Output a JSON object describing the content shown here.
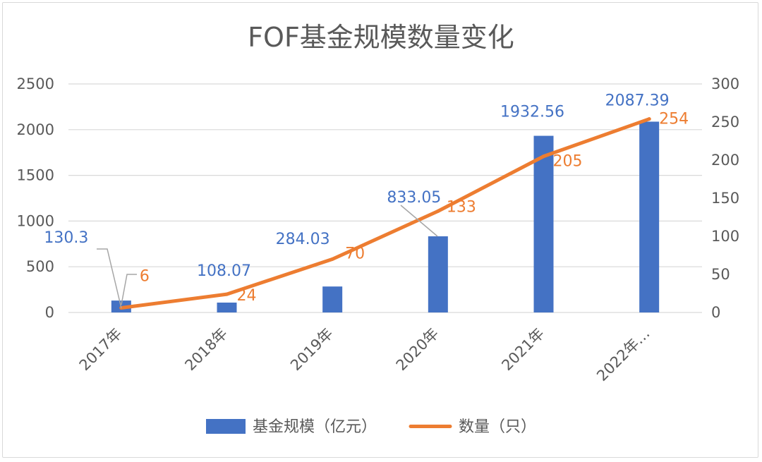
{
  "chart_data": {
    "type": "bar",
    "title": "FOF基金规模数量变化",
    "categories": [
      "2017年",
      "2018年",
      "2019年",
      "2020年",
      "2021年",
      "2022年…"
    ],
    "series": [
      {
        "name": "基金规模（亿元）",
        "type": "bar",
        "axis": "left",
        "color": "#4472c4",
        "values": [
          130.3,
          108.07,
          284.03,
          833.05,
          1932.56,
          2087.39
        ],
        "labels": [
          "130.3",
          "108.07",
          "284.03",
          "833.05",
          "1932.56",
          "2087.39"
        ]
      },
      {
        "name": "数量（只）",
        "type": "line",
        "axis": "right",
        "color": "#ed7d31",
        "values": [
          6,
          24,
          70,
          133,
          205,
          254
        ],
        "labels": [
          "6",
          "24",
          "70",
          "133",
          "205",
          "254"
        ]
      }
    ],
    "y_left": {
      "min": 0,
      "max": 2500,
      "ticks": [
        "0",
        "500",
        "1000",
        "1500",
        "2000",
        "2500"
      ]
    },
    "y_right": {
      "min": 0,
      "max": 300,
      "ticks": [
        "0",
        "50",
        "100",
        "150",
        "200",
        "250",
        "300"
      ]
    },
    "grid": true,
    "legend_position": "bottom"
  }
}
